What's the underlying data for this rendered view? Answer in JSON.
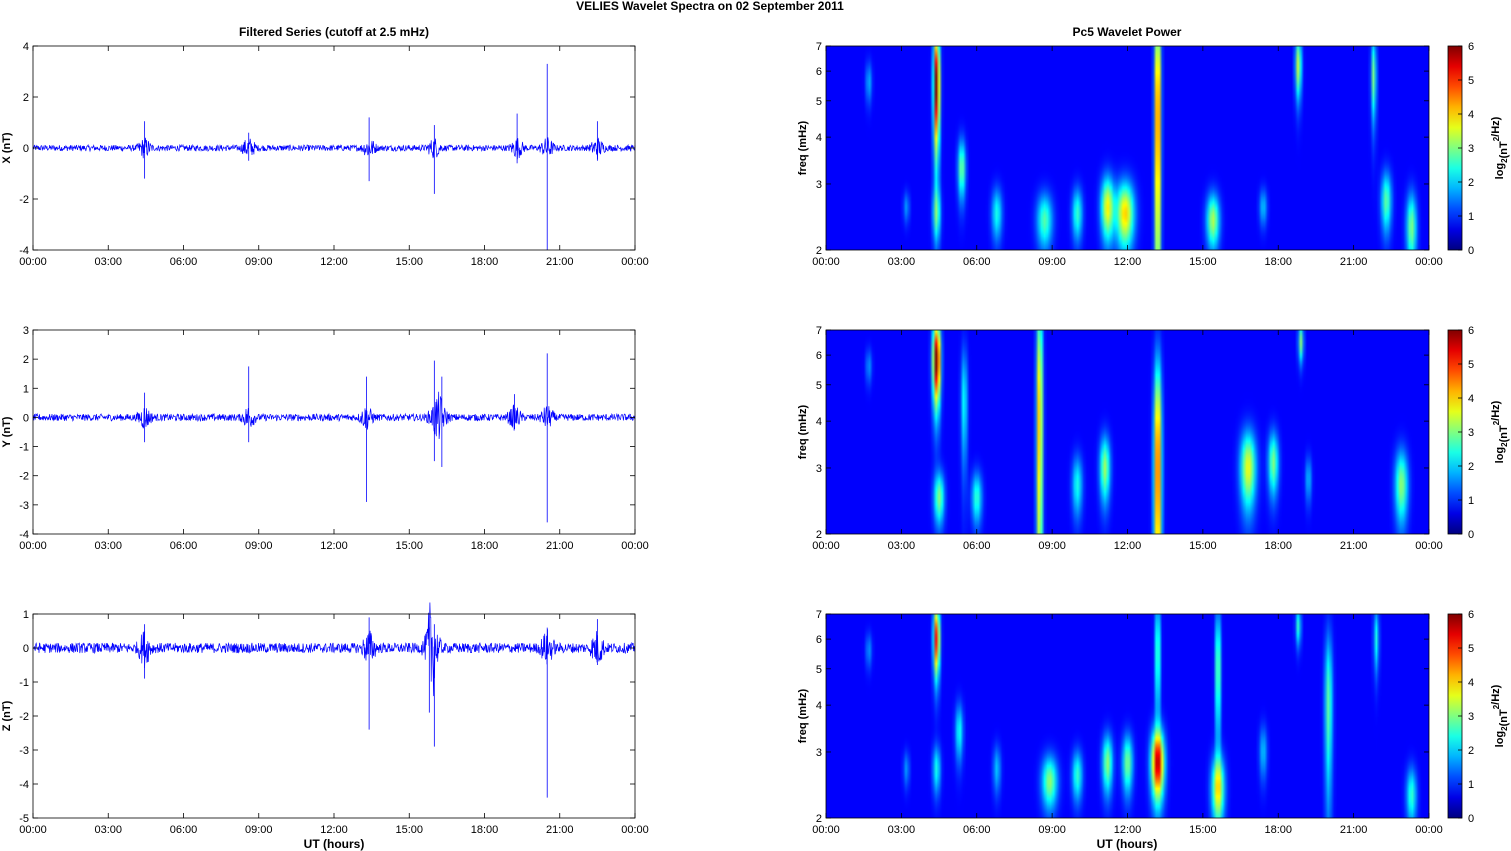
{
  "figure": {
    "title": "VELIES Wavelet Spectra on 02 September 2011",
    "left_column_title": "Filtered Series (cutoff at 2.5 mHz)",
    "right_column_title": "Pc5 Wavelet Power",
    "xlabel": "UT (hours)",
    "colors": {
      "series_line": "#0000ff",
      "plot_bg_spectrum": "#00008f"
    }
  },
  "chart_data": [
    {
      "type": "line",
      "panel": "X",
      "ylabel": "X (nT)",
      "xlim": [
        0,
        24
      ],
      "ylim": [
        -4,
        4
      ],
      "xticks": [
        "00:00",
        "03:00",
        "06:00",
        "09:00",
        "12:00",
        "15:00",
        "18:00",
        "21:00",
        "00:00"
      ],
      "yticks": [
        -4,
        -2,
        0,
        2,
        4
      ],
      "baseline_noise_amplitude": 0.12,
      "spikes": [
        {
          "t": 4.45,
          "max": 1.05,
          "min": -1.2
        },
        {
          "t": 8.6,
          "max": 0.6,
          "min": -0.5
        },
        {
          "t": 13.4,
          "max": 1.2,
          "min": -1.3
        },
        {
          "t": 16.0,
          "max": 0.9,
          "min": -1.8
        },
        {
          "t": 19.3,
          "max": 1.35,
          "min": -0.6
        },
        {
          "t": 20.5,
          "max": 3.3,
          "min": -4.0
        },
        {
          "t": 22.5,
          "max": 1.05,
          "min": -0.5
        }
      ]
    },
    {
      "type": "line",
      "panel": "Y",
      "ylabel": "Y (nT)",
      "xlim": [
        0,
        24
      ],
      "ylim": [
        -4,
        3
      ],
      "xticks": [
        "00:00",
        "03:00",
        "06:00",
        "09:00",
        "12:00",
        "15:00",
        "18:00",
        "21:00",
        "00:00"
      ],
      "yticks": [
        -4,
        -3,
        -2,
        -1,
        0,
        1,
        2,
        3
      ],
      "baseline_noise_amplitude": 0.12,
      "spikes": [
        {
          "t": 4.45,
          "max": 0.85,
          "min": -0.85
        },
        {
          "t": 8.6,
          "max": 1.75,
          "min": -0.85
        },
        {
          "t": 13.3,
          "max": 1.4,
          "min": -2.9
        },
        {
          "t": 16.0,
          "max": 1.95,
          "min": -1.5
        },
        {
          "t": 16.3,
          "max": 1.4,
          "min": -1.7
        },
        {
          "t": 19.2,
          "max": 0.8,
          "min": -0.4
        },
        {
          "t": 20.5,
          "max": 2.2,
          "min": -3.6
        }
      ]
    },
    {
      "type": "line",
      "panel": "Z",
      "ylabel": "Z (nT)",
      "xlim": [
        0,
        24
      ],
      "ylim": [
        -5,
        1
      ],
      "xticks": [
        "00:00",
        "03:00",
        "06:00",
        "09:00",
        "12:00",
        "15:00",
        "18:00",
        "21:00",
        "00:00"
      ],
      "yticks": [
        -5,
        -4,
        -3,
        -2,
        -1,
        0,
        1
      ],
      "baseline_noise_amplitude": 0.15,
      "spikes": [
        {
          "t": 4.45,
          "max": 0.7,
          "min": -0.9
        },
        {
          "t": 13.4,
          "max": 0.9,
          "min": -2.4
        },
        {
          "t": 15.8,
          "max": 0.6,
          "min": -1.9
        },
        {
          "t": 16.0,
          "max": 0.7,
          "min": -2.9
        },
        {
          "t": 20.5,
          "max": 0.6,
          "min": -4.4
        },
        {
          "t": 22.5,
          "max": 0.85,
          "min": -0.5
        }
      ]
    },
    {
      "type": "heatmap",
      "panel": "X power",
      "ylabel": "freq (mHz)",
      "yscale": "log",
      "xlim": [
        0,
        24
      ],
      "ylim": [
        2,
        7
      ],
      "xticks": [
        "00:00",
        "03:00",
        "06:00",
        "09:00",
        "12:00",
        "15:00",
        "18:00",
        "21:00",
        "00:00"
      ],
      "yticks": [
        2,
        3,
        4,
        5,
        6,
        7
      ],
      "colorbar": {
        "label_main": "log",
        "label_sub": "2",
        "label_units_a": "(nT",
        "label_sup": "2",
        "label_units_b": "/Hz)",
        "ticks": [
          0,
          1,
          2,
          3,
          4,
          5,
          6
        ],
        "range": [
          0,
          6
        ]
      },
      "blobs": [
        {
          "t": 1.7,
          "f": 5.6,
          "dt": 0.12,
          "df": 0.7,
          "p": 1.2
        },
        {
          "t": 3.2,
          "f": 2.6,
          "dt": 0.12,
          "df": 0.25,
          "p": 1.0
        },
        {
          "t": 4.4,
          "f": 5.5,
          "dt": 0.12,
          "df": 2.0,
          "p": 6.0
        },
        {
          "t": 4.4,
          "f": 2.5,
          "dt": 0.15,
          "df": 0.4,
          "p": 2.0
        },
        {
          "t": 5.4,
          "f": 3.3,
          "dt": 0.15,
          "df": 0.6,
          "p": 2.5
        },
        {
          "t": 6.8,
          "f": 2.5,
          "dt": 0.2,
          "df": 0.4,
          "p": 1.8
        },
        {
          "t": 8.7,
          "f": 2.4,
          "dt": 0.3,
          "df": 0.4,
          "p": 2.2
        },
        {
          "t": 10.0,
          "f": 2.5,
          "dt": 0.2,
          "df": 0.4,
          "p": 2.0
        },
        {
          "t": 11.2,
          "f": 2.6,
          "dt": 0.25,
          "df": 0.5,
          "p": 3.3
        },
        {
          "t": 11.9,
          "f": 2.5,
          "dt": 0.35,
          "df": 0.5,
          "p": 3.6
        },
        {
          "t": 13.2,
          "f": 4.5,
          "dt": 0.12,
          "df": 4.0,
          "p": 4.8
        },
        {
          "t": 15.4,
          "f": 2.4,
          "dt": 0.25,
          "df": 0.4,
          "p": 2.8
        },
        {
          "t": 17.4,
          "f": 2.6,
          "dt": 0.15,
          "df": 0.3,
          "p": 1.3
        },
        {
          "t": 18.8,
          "f": 6.2,
          "dt": 0.12,
          "df": 1.2,
          "p": 3.0
        },
        {
          "t": 21.8,
          "f": 5.8,
          "dt": 0.1,
          "df": 1.5,
          "p": 2.5
        },
        {
          "t": 22.3,
          "f": 2.7,
          "dt": 0.2,
          "df": 0.5,
          "p": 2.3
        },
        {
          "t": 23.3,
          "f": 2.3,
          "dt": 0.2,
          "df": 0.5,
          "p": 2.5
        }
      ]
    },
    {
      "type": "heatmap",
      "panel": "Y power",
      "ylabel": "freq (mHz)",
      "yscale": "log",
      "xlim": [
        0,
        24
      ],
      "ylim": [
        2,
        7
      ],
      "xticks": [
        "00:00",
        "03:00",
        "06:00",
        "09:00",
        "12:00",
        "15:00",
        "18:00",
        "21:00",
        "00:00"
      ],
      "yticks": [
        2,
        3,
        4,
        5,
        6,
        7
      ],
      "colorbar": {
        "label_main": "log",
        "label_sub": "2",
        "label_units_a": "(nT",
        "label_sup": "2",
        "label_units_b": "/Hz)",
        "ticks": [
          0,
          1,
          2,
          3,
          4,
          5,
          6
        ],
        "range": [
          0,
          6
        ]
      },
      "blobs": [
        {
          "t": 1.7,
          "f": 5.6,
          "dt": 0.12,
          "df": 0.6,
          "p": 1.0
        },
        {
          "t": 4.4,
          "f": 5.8,
          "dt": 0.15,
          "df": 1.5,
          "p": 6.0
        },
        {
          "t": 4.5,
          "f": 2.5,
          "dt": 0.2,
          "df": 0.4,
          "p": 2.5
        },
        {
          "t": 5.5,
          "f": 4.5,
          "dt": 0.12,
          "df": 1.6,
          "p": 1.8
        },
        {
          "t": 6.0,
          "f": 2.5,
          "dt": 0.2,
          "df": 0.4,
          "p": 2.0
        },
        {
          "t": 8.5,
          "f": 4.0,
          "dt": 0.12,
          "df": 4.0,
          "p": 4.0
        },
        {
          "t": 10.0,
          "f": 2.7,
          "dt": 0.2,
          "df": 0.5,
          "p": 1.8
        },
        {
          "t": 11.1,
          "f": 3.0,
          "dt": 0.2,
          "df": 0.6,
          "p": 2.7
        },
        {
          "t": 13.2,
          "f": 3.0,
          "dt": 0.15,
          "df": 2.5,
          "p": 4.6
        },
        {
          "t": 16.8,
          "f": 3.0,
          "dt": 0.3,
          "df": 0.7,
          "p": 3.2
        },
        {
          "t": 17.8,
          "f": 3.1,
          "dt": 0.2,
          "df": 0.6,
          "p": 2.5
        },
        {
          "t": 18.9,
          "f": 6.5,
          "dt": 0.1,
          "df": 0.8,
          "p": 2.5
        },
        {
          "t": 19.2,
          "f": 2.8,
          "dt": 0.12,
          "df": 0.4,
          "p": 1.3
        },
        {
          "t": 22.9,
          "f": 2.7,
          "dt": 0.25,
          "df": 0.6,
          "p": 2.6
        }
      ]
    },
    {
      "type": "heatmap",
      "panel": "Z power",
      "ylabel": "freq (mHz)",
      "yscale": "log",
      "xlim": [
        0,
        24
      ],
      "ylim": [
        2,
        7
      ],
      "xticks": [
        "00:00",
        "03:00",
        "06:00",
        "09:00",
        "12:00",
        "15:00",
        "18:00",
        "21:00",
        "00:00"
      ],
      "yticks": [
        2,
        3,
        4,
        5,
        6,
        7
      ],
      "colorbar": {
        "label_main": "log",
        "label_sub": "2",
        "label_units_a": "(nT",
        "label_sup": "2",
        "label_units_b": "/Hz)",
        "ticks": [
          0,
          1,
          2,
          3,
          4,
          5,
          6
        ],
        "range": [
          0,
          6
        ]
      },
      "blobs": [
        {
          "t": 1.7,
          "f": 5.6,
          "dt": 0.12,
          "df": 0.6,
          "p": 1.0
        },
        {
          "t": 3.2,
          "f": 2.7,
          "dt": 0.12,
          "df": 0.3,
          "p": 1.0
        },
        {
          "t": 4.4,
          "f": 6.0,
          "dt": 0.12,
          "df": 1.3,
          "p": 5.0
        },
        {
          "t": 4.4,
          "f": 2.7,
          "dt": 0.15,
          "df": 0.4,
          "p": 1.8
        },
        {
          "t": 5.3,
          "f": 3.4,
          "dt": 0.15,
          "df": 0.6,
          "p": 1.8
        },
        {
          "t": 6.8,
          "f": 2.7,
          "dt": 0.15,
          "df": 0.4,
          "p": 1.3
        },
        {
          "t": 8.9,
          "f": 2.5,
          "dt": 0.3,
          "df": 0.4,
          "p": 2.6
        },
        {
          "t": 10.0,
          "f": 2.6,
          "dt": 0.2,
          "df": 0.4,
          "p": 2.0
        },
        {
          "t": 11.2,
          "f": 2.8,
          "dt": 0.2,
          "df": 0.5,
          "p": 2.6
        },
        {
          "t": 12.0,
          "f": 2.8,
          "dt": 0.2,
          "df": 0.5,
          "p": 2.5
        },
        {
          "t": 13.2,
          "f": 2.8,
          "dt": 0.25,
          "df": 0.6,
          "p": 5.2
        },
        {
          "t": 13.2,
          "f": 5.5,
          "dt": 0.1,
          "df": 2.0,
          "p": 2.5
        },
        {
          "t": 15.6,
          "f": 2.4,
          "dt": 0.25,
          "df": 0.5,
          "p": 3.3
        },
        {
          "t": 15.6,
          "f": 5.0,
          "dt": 0.1,
          "df": 2.0,
          "p": 2.8
        },
        {
          "t": 17.4,
          "f": 3.0,
          "dt": 0.15,
          "df": 0.5,
          "p": 1.3
        },
        {
          "t": 18.8,
          "f": 6.5,
          "dt": 0.1,
          "df": 0.8,
          "p": 2.0
        },
        {
          "t": 20.0,
          "f": 4.0,
          "dt": 0.15,
          "df": 2.0,
          "p": 2.3
        },
        {
          "t": 21.9,
          "f": 6.0,
          "dt": 0.1,
          "df": 1.2,
          "p": 1.8
        },
        {
          "t": 23.3,
          "f": 2.3,
          "dt": 0.2,
          "df": 0.4,
          "p": 2.0
        }
      ]
    }
  ]
}
